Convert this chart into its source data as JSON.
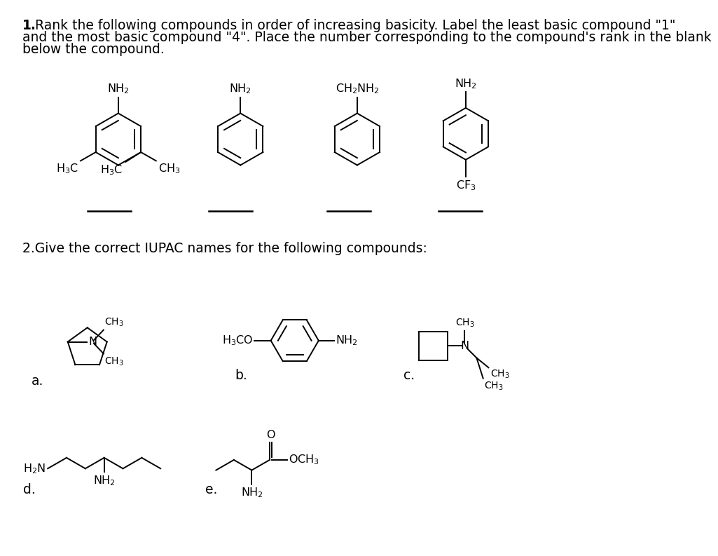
{
  "bg_color": "#ffffff",
  "text_color": "#000000",
  "line1": "1.",
  "line1b": "Rank the following compounds in order of increasing basicity. Label the least basic compound \"1\"",
  "line2": "and the most basic compound \"4\". Place the number corresponding to the compound's rank in the blank",
  "line3": "below the compound.",
  "q2": "2.Give the correct IUPAC names for the following compounds:",
  "label_a": "a.",
  "label_b": "b.",
  "label_c": "c.",
  "label_d": "d.",
  "label_e": "e.",
  "fs_title": 13.5,
  "fs_chem": 11.5,
  "lw": 1.4
}
